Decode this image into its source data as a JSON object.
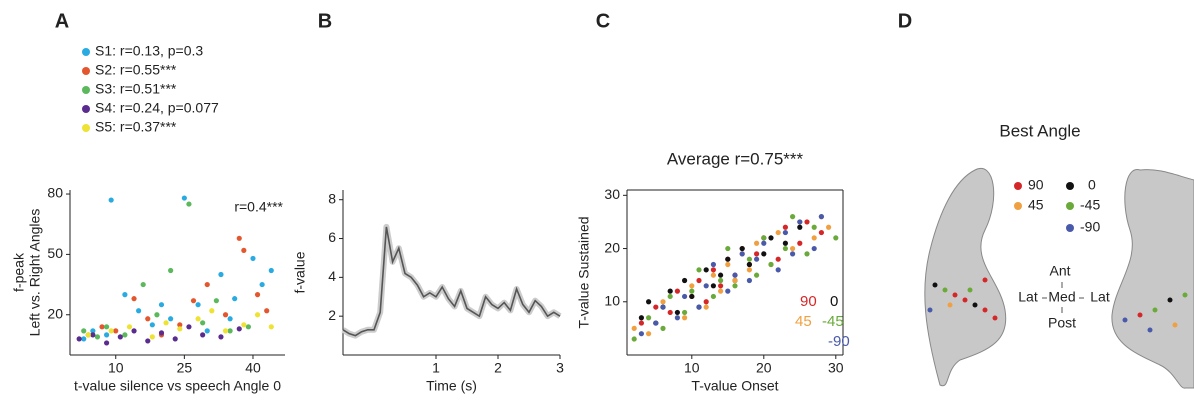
{
  "chart_data": [
    {
      "type": "scatter",
      "panel_label": "A",
      "xlabel": "t-value silence vs speech Angle 0",
      "ylabel": [
        "f-peak",
        "Left vs. Right Angles"
      ],
      "annotation": "r=0.4***",
      "legend_position": "top",
      "xlim": [
        0,
        47
      ],
      "ylim": [
        0,
        82
      ],
      "xticks": [
        10,
        25,
        40
      ],
      "yticks": [
        20,
        50,
        80
      ],
      "series": [
        {
          "name": "S1: r=0.13, p=0.3",
          "color": "#29abe2",
          "x": [
            3,
            5,
            9,
            12,
            15,
            18,
            22,
            25,
            28,
            30,
            33,
            36,
            40,
            42,
            44,
            8,
            20,
            35
          ],
          "values": [
            8,
            12,
            77,
            30,
            22,
            15,
            18,
            78,
            25,
            12,
            40,
            28,
            48,
            35,
            42,
            10,
            25,
            18
          ]
        },
        {
          "name": "S2: r=0.55***",
          "color": "#e4572e",
          "x": [
            4,
            7,
            10,
            14,
            17,
            20,
            24,
            27,
            30,
            34,
            37,
            38,
            41,
            43
          ],
          "values": [
            10,
            14,
            12,
            28,
            18,
            10,
            15,
            27,
            35,
            20,
            58,
            52,
            30,
            22
          ]
        },
        {
          "name": "S3: r=0.51***",
          "color": "#5cb85c",
          "x": [
            3,
            6,
            8,
            12,
            16,
            19,
            22,
            26,
            29,
            32,
            35,
            39
          ],
          "values": [
            12,
            9,
            14,
            10,
            35,
            20,
            42,
            75,
            16,
            27,
            12,
            14
          ]
        },
        {
          "name": "S4: r=0.24, p=0.077",
          "color": "#5b2c8f",
          "x": [
            2,
            5,
            8,
            11,
            14,
            17,
            20,
            23,
            26,
            29,
            33,
            37
          ],
          "values": [
            8,
            10,
            6,
            9,
            12,
            7,
            11,
            8,
            14,
            10,
            9,
            13
          ]
        },
        {
          "name": "S5: r=0.37***",
          "color": "#eee233",
          "x": [
            4,
            9,
            13,
            18,
            21,
            24,
            28,
            31,
            34,
            38,
            41,
            44
          ],
          "values": [
            10,
            12,
            14,
            9,
            16,
            13,
            18,
            22,
            12,
            15,
            20,
            14
          ]
        }
      ]
    },
    {
      "type": "line",
      "panel_label": "B",
      "xlabel": "Time (s)",
      "ylabel": "f-value",
      "color": "#555555",
      "xlim": [
        -0.5,
        3
      ],
      "ylim": [
        0,
        8.5
      ],
      "xticks": [
        1,
        2,
        3
      ],
      "yticks": [
        2,
        4,
        6,
        8
      ],
      "x": [
        -0.5,
        -0.4,
        -0.3,
        -0.2,
        -0.1,
        0,
        0.1,
        0.2,
        0.3,
        0.4,
        0.5,
        0.6,
        0.7,
        0.8,
        0.9,
        1,
        1.1,
        1.2,
        1.3,
        1.4,
        1.5,
        1.6,
        1.7,
        1.8,
        1.9,
        2,
        2.1,
        2.2,
        2.3,
        2.4,
        2.5,
        2.6,
        2.7,
        2.8,
        2.9,
        3
      ],
      "values": [
        1.3,
        1.1,
        1.0,
        1.2,
        1.3,
        1.3,
        2.2,
        6.6,
        4.8,
        5.5,
        4.2,
        4.0,
        3.6,
        3.0,
        3.2,
        3.0,
        3.5,
        2.9,
        2.5,
        3.3,
        2.4,
        2.2,
        2.0,
        3.0,
        2.6,
        2.4,
        2.7,
        2.3,
        3.4,
        2.6,
        2.2,
        2.8,
        2.5,
        2.0,
        2.2,
        2.0
      ]
    },
    {
      "type": "scatter",
      "panel_label": "C",
      "title": "Average r=0.75***",
      "xlabel": "T-value Onset",
      "ylabel": "T-value Sustained",
      "legend_position": "lower right",
      "xlim": [
        1,
        31
      ],
      "ylim": [
        0,
        31
      ],
      "xticks": [
        10,
        20,
        30
      ],
      "yticks": [
        10,
        20,
        30
      ],
      "series": [
        {
          "name": "90",
          "color": "#d62728",
          "x": [
            3,
            5,
            7,
            8,
            10,
            11,
            12,
            13,
            14,
            15,
            16,
            17,
            18,
            19,
            20,
            22,
            23,
            25,
            26,
            28
          ],
          "values": [
            6,
            9,
            8,
            12,
            11,
            14,
            10,
            16,
            13,
            18,
            15,
            20,
            17,
            19,
            22,
            18,
            24,
            21,
            25,
            23
          ]
        },
        {
          "name": "0",
          "color": "#111111",
          "x": [
            3,
            4,
            5,
            6,
            7,
            8,
            9,
            10,
            11,
            12,
            13,
            14,
            15,
            16,
            17,
            18,
            20,
            21,
            23,
            25
          ],
          "values": [
            7,
            10,
            6,
            9,
            12,
            8,
            14,
            11,
            9,
            16,
            13,
            15,
            18,
            14,
            20,
            17,
            19,
            22,
            21,
            24
          ]
        },
        {
          "name": "45",
          "color": "#f0a040",
          "x": [
            2,
            4,
            6,
            9,
            10,
            12,
            13,
            14,
            15,
            16,
            17,
            18,
            19,
            21,
            22,
            24,
            25,
            27,
            28,
            29
          ],
          "values": [
            5,
            4,
            10,
            7,
            13,
            9,
            15,
            12,
            17,
            14,
            19,
            16,
            21,
            17,
            23,
            20,
            25,
            22,
            26,
            24
          ]
        },
        {
          "name": "-45",
          "color": "#6aaa3a",
          "x": [
            2,
            4,
            6,
            7,
            9,
            10,
            11,
            13,
            14,
            15,
            16,
            18,
            19,
            20,
            21,
            23,
            24,
            26,
            27,
            30
          ],
          "values": [
            3,
            7,
            5,
            11,
            8,
            12,
            16,
            11,
            14,
            20,
            13,
            18,
            15,
            22,
            17,
            20,
            26,
            19,
            24,
            22
          ]
        },
        {
          "name": "-90",
          "color": "#4a5aaa",
          "x": [
            3,
            5,
            6,
            8,
            9,
            11,
            12,
            13,
            15,
            16,
            17,
            18,
            19,
            20,
            22,
            23,
            24,
            25,
            27,
            28
          ],
          "values": [
            4,
            6,
            9,
            7,
            11,
            9,
            13,
            17,
            12,
            15,
            19,
            14,
            18,
            21,
            16,
            23,
            19,
            25,
            20,
            26
          ]
        }
      ]
    }
  ],
  "brain_panel": {
    "panel_label": "D",
    "title": "Best Angle",
    "legend": [
      "90",
      "0",
      "45",
      "-45",
      "-90"
    ],
    "orientation": {
      "anterior": "Ant",
      "lateral_left": "Lat",
      "medial": "Med",
      "lateral_right": "Lat",
      "posterior": "Post"
    }
  }
}
